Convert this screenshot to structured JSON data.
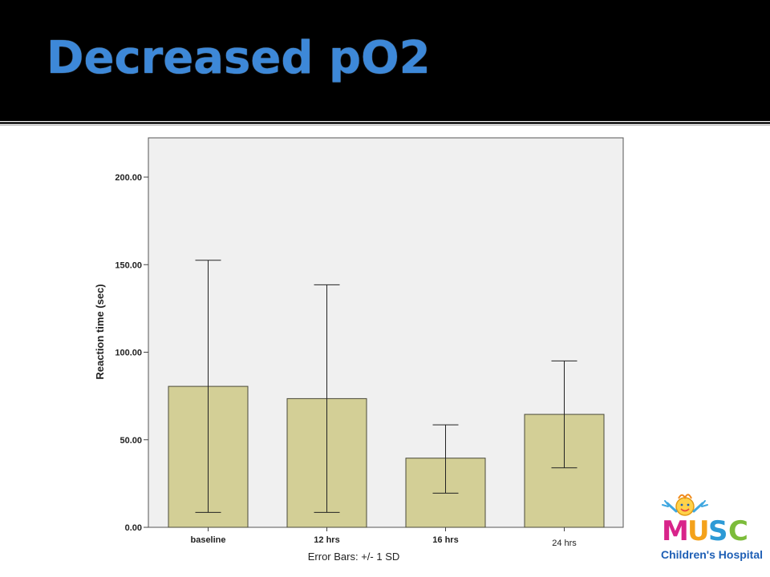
{
  "slide": {
    "title": "Decreased pO2",
    "title_color": "#3d88d8",
    "header_bg": "#000000"
  },
  "chart_data": {
    "type": "bar",
    "categories": [
      "baseline",
      "12 hrs",
      "16 hrs",
      "24 hrs"
    ],
    "values": [
      80.5,
      73.5,
      39.5,
      64.5
    ],
    "error_upper": [
      152.5,
      138.5,
      58.5,
      95.0
    ],
    "error_lower": [
      8.5,
      8.5,
      19.5,
      34.0
    ],
    "error_label": "Error Bars: +/- 1 SD",
    "ylabel": "Reaction time (sec)",
    "xlabel": "",
    "ylim": [
      0,
      222
    ],
    "yticks": [
      0,
      50,
      100,
      150,
      200
    ],
    "ytick_labels": [
      "0.00",
      "50.00",
      "100.00",
      "150.00",
      "200.00"
    ],
    "grid": false,
    "bar_color": "#d3cf96",
    "plot_bg": "#f0f0f0"
  },
  "logo": {
    "name": "MUSC",
    "subtitle": "Children's Hospital",
    "icon": "child-face-icon"
  }
}
